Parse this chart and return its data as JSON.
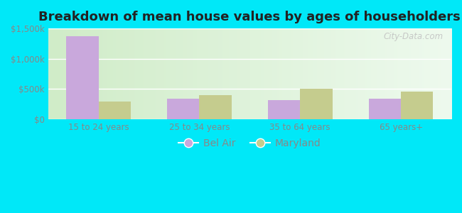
{
  "title": "Breakdown of mean house values by ages of householders",
  "categories": [
    "15 to 24 years",
    "25 to 34 years",
    "35 to 64 years",
    "65 years+"
  ],
  "bel_air_values": [
    1370000,
    340000,
    315000,
    345000
  ],
  "maryland_values": [
    290000,
    400000,
    500000,
    455000
  ],
  "bel_air_color": "#c9a8dc",
  "maryland_color": "#c5cc8e",
  "ylim": [
    0,
    1500000
  ],
  "yticks": [
    0,
    500000,
    1000000,
    1500000
  ],
  "ytick_labels": [
    "$0",
    "$500k",
    "$1,000k",
    "$1,500k"
  ],
  "background_outer": "#00e8f8",
  "legend_labels": [
    "Bel Air",
    "Maryland"
  ],
  "title_fontsize": 13,
  "bar_width": 0.32,
  "grid_color": "#ffffff",
  "tick_color": "#888888",
  "watermark": "City-Data.com",
  "plot_bg_top": "#d8eecf",
  "plot_bg_bottom": "#eefaee"
}
